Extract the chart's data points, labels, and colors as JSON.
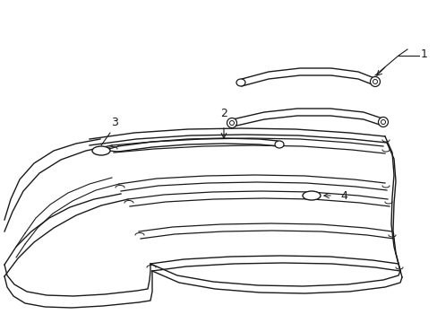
{
  "bg_color": "#ffffff",
  "line_color": "#1a1a1a",
  "lw_main": 0.9,
  "lw_thin": 0.7,
  "fig_w": 4.89,
  "fig_h": 3.6,
  "dpi": 100
}
